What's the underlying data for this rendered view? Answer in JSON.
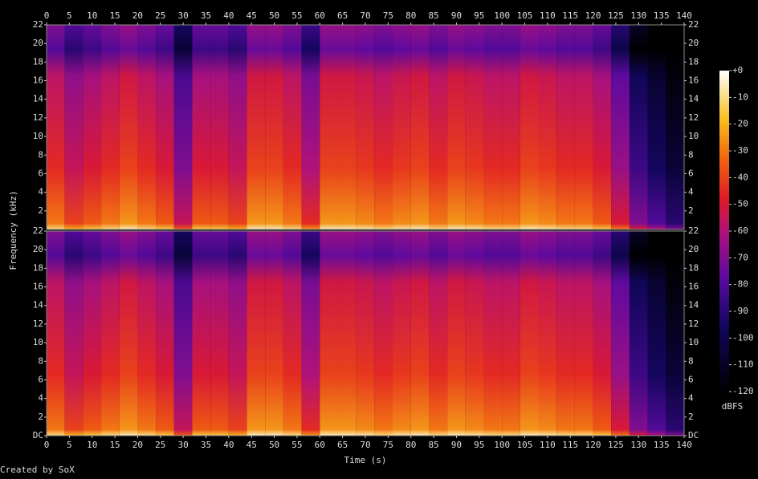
{
  "chart_data": {
    "type": "spectrogram",
    "xlabel": "Time (s)",
    "ylabel": "Frequency (kHz)",
    "credit": "Created by SoX",
    "xlim": [
      0,
      140
    ],
    "xticks": [
      0,
      5,
      10,
      15,
      20,
      25,
      30,
      35,
      40,
      45,
      50,
      55,
      60,
      65,
      70,
      75,
      80,
      85,
      90,
      95,
      100,
      105,
      110,
      115,
      120,
      125,
      130,
      135,
      140
    ],
    "bins": [
      0,
      4,
      8,
      12,
      16,
      20,
      24,
      28,
      32,
      36,
      40,
      44,
      48,
      52,
      56,
      60,
      64,
      68,
      72,
      76,
      80,
      84,
      88,
      92,
      96,
      100,
      104,
      108,
      112,
      116,
      120,
      124,
      128,
      132,
      136,
      140
    ],
    "channels": [
      {
        "ylim": [
          0,
          22
        ],
        "yticks": [
          2,
          4,
          6,
          8,
          10,
          12,
          14,
          16,
          18,
          20,
          22
        ],
        "values": [
          -45,
          -55,
          -50,
          -45,
          -40,
          -45,
          -50,
          -70,
          -50,
          -50,
          -55,
          -40,
          -40,
          -45,
          -60,
          -40,
          -40,
          -42,
          -45,
          -42,
          -40,
          -45,
          -40,
          -42,
          -45,
          -45,
          -40,
          -42,
          -45,
          -45,
          -50,
          -65,
          -85,
          -95,
          -105
        ]
      },
      {
        "ylim": [
          0,
          22
        ],
        "yticks": [
          {
            "value": 0,
            "label": "DC"
          },
          2,
          4,
          6,
          8,
          10,
          12,
          14,
          16,
          18,
          20,
          22
        ],
        "values": [
          -45,
          -55,
          -50,
          -45,
          -40,
          -45,
          -50,
          -70,
          -50,
          -50,
          -55,
          -40,
          -40,
          -45,
          -60,
          -40,
          -40,
          -42,
          -45,
          -42,
          -40,
          -45,
          -40,
          -42,
          -45,
          -45,
          -40,
          -42,
          -45,
          -45,
          -50,
          -65,
          -85,
          -95,
          -105
        ]
      }
    ],
    "colorbar": {
      "label": "dBFS",
      "lim": [
        -120,
        0
      ],
      "ticks": [
        {
          "value": 0,
          "label": "+0"
        },
        -10,
        -20,
        -30,
        -40,
        -50,
        -60,
        -70,
        -80,
        -90,
        -100,
        -110,
        -120
      ]
    }
  }
}
